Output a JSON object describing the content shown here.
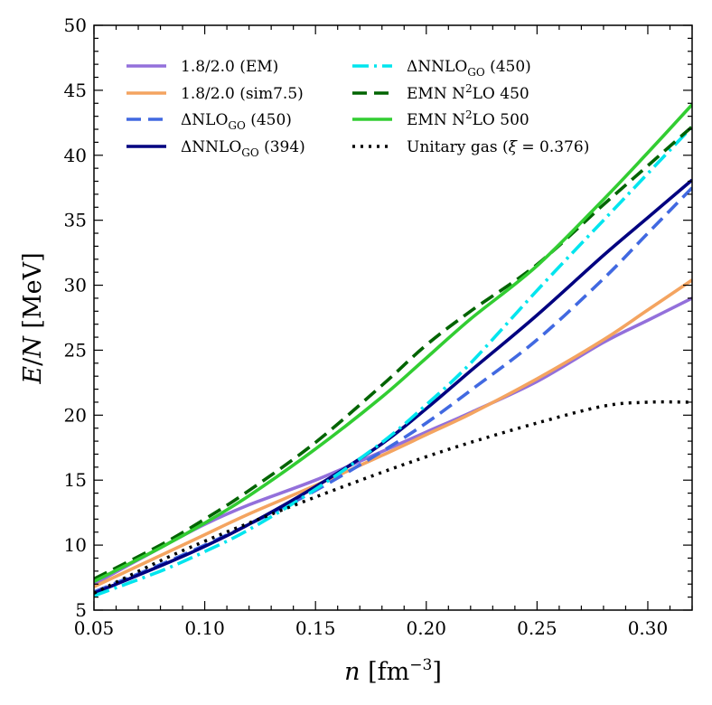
{
  "chart_data": {
    "type": "line",
    "title": "",
    "xlabel": "n [fm^-3]",
    "ylabel": "E/N [MeV]",
    "xlim": [
      0.05,
      0.32
    ],
    "ylim": [
      5,
      50
    ],
    "xticks": [
      0.05,
      0.1,
      0.15,
      0.2,
      0.25,
      0.3
    ],
    "xtick_labels": [
      "0.05",
      "0.10",
      "0.15",
      "0.20",
      "0.25",
      "0.30"
    ],
    "yticks": [
      5,
      10,
      15,
      20,
      25,
      30,
      35,
      40,
      45,
      50
    ],
    "ytick_labels": [
      "5",
      "10",
      "15",
      "20",
      "25",
      "30",
      "35",
      "40",
      "45",
      "50"
    ],
    "grid": false,
    "legend_position": "top-left",
    "x": [
      0.05,
      0.08,
      0.1,
      0.12,
      0.15,
      0.18,
      0.2,
      0.22,
      0.25,
      0.28,
      0.3,
      0.32
    ],
    "series": [
      {
        "name": "1.8/2.0 (EM)",
        "color": "#9370db",
        "dash": "solid",
        "values": [
          7.0,
          9.8,
          11.6,
          13.1,
          15.0,
          17.2,
          18.7,
          20.2,
          22.6,
          25.6,
          27.3,
          29.0
        ]
      },
      {
        "name": "1.8/2.0 (sim7.5)",
        "color": "#f4a460",
        "dash": "solid",
        "values": [
          6.8,
          9.2,
          10.8,
          12.4,
          14.6,
          16.9,
          18.5,
          20.1,
          22.8,
          25.8,
          28.1,
          30.4
        ]
      },
      {
        "name": "ΔNLO_GO (450)",
        "color": "#4169e1",
        "dash": "dashed",
        "values": [
          6.4,
          8.5,
          10.0,
          11.6,
          14.2,
          17.2,
          19.4,
          21.9,
          25.8,
          30.5,
          34.0,
          37.5
        ]
      },
      {
        "name": "ΔNNLO_GO (394)",
        "color": "#000080",
        "dash": "solid",
        "values": [
          6.3,
          8.4,
          9.9,
          11.6,
          14.5,
          17.8,
          20.5,
          23.4,
          27.7,
          32.3,
          35.2,
          38.1
        ]
      },
      {
        "name": "ΔNNLO_GO (450)",
        "color": "#00e5ee",
        "dash": "dashdot",
        "values": [
          6.1,
          8.0,
          9.5,
          11.2,
          14.3,
          17.9,
          20.8,
          24.0,
          29.6,
          35.0,
          38.6,
          42.2
        ]
      },
      {
        "name": "EMN N²LO 450",
        "color": "#006400",
        "dash": "dashed",
        "values": [
          7.4,
          10.0,
          12.0,
          14.2,
          17.9,
          22.3,
          25.4,
          28.0,
          31.6,
          36.2,
          39.2,
          42.2
        ]
      },
      {
        "name": "EMN N²LO 500",
        "color": "#32cd32",
        "dash": "solid",
        "values": [
          7.2,
          9.8,
          11.7,
          13.8,
          17.4,
          21.4,
          24.4,
          27.4,
          31.5,
          36.6,
          40.2,
          43.9
        ]
      },
      {
        "name": "Unitary gas (ξ = 0.376)",
        "color": "#000000",
        "dash": "dotted",
        "values": [
          6.3,
          8.8,
          10.3,
          11.7,
          13.7,
          15.6,
          16.8,
          17.9,
          19.4,
          20.7,
          21.0,
          21.0
        ]
      }
    ]
  }
}
